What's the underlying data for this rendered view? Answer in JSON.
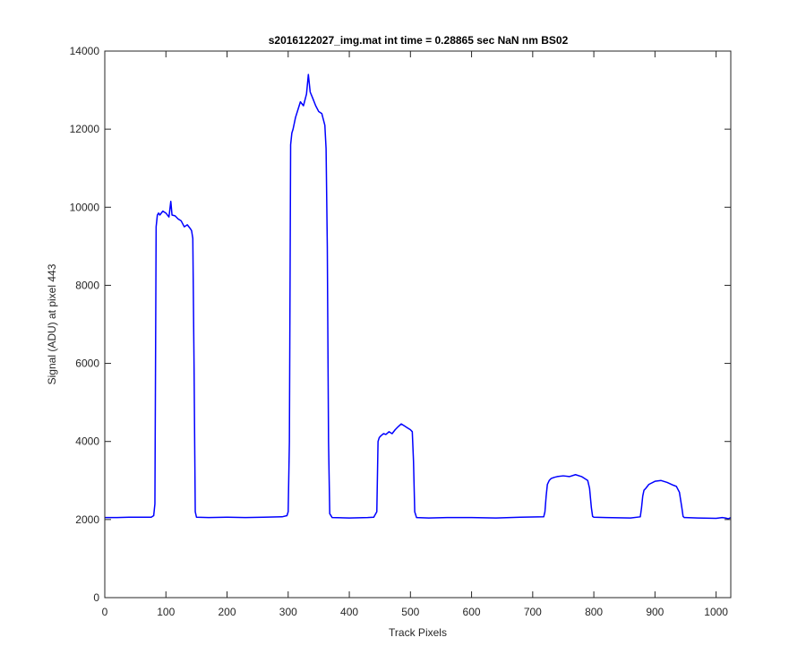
{
  "chart_data": {
    "type": "line",
    "title": "s2016122027_img.mat int time = 0.28865 sec  NaN nm BS02",
    "xlabel": "Track Pixels",
    "ylabel": "Signal (ADU) at pixel 443",
    "xlim": [
      0,
      1024
    ],
    "ylim": [
      0,
      14000
    ],
    "xticks": [
      0,
      100,
      200,
      300,
      400,
      500,
      600,
      700,
      800,
      900,
      1000
    ],
    "yticks": [
      0,
      2000,
      4000,
      6000,
      8000,
      10000,
      12000,
      14000
    ],
    "grid": false,
    "box": true,
    "color": "#0000ff",
    "series": [
      {
        "x": [
          0,
          20,
          40,
          60,
          76,
          80,
          82,
          84,
          86,
          88,
          90,
          95,
          100,
          105,
          108,
          110,
          115,
          120,
          125,
          130,
          135,
          140,
          142,
          144,
          146,
          148,
          150,
          170,
          200,
          230,
          260,
          290,
          298,
          300,
          302,
          304,
          306,
          308,
          312,
          316,
          320,
          325,
          330,
          333,
          336,
          340,
          345,
          350,
          355,
          360,
          362,
          364,
          366,
          368,
          372,
          400,
          430,
          440,
          445,
          447,
          449,
          452,
          456,
          460,
          465,
          470,
          475,
          480,
          485,
          490,
          495,
          500,
          503,
          505,
          507,
          510,
          530,
          560,
          600,
          640,
          680,
          718,
          720,
          722,
          724,
          727,
          730,
          735,
          740,
          750,
          760,
          770,
          780,
          790,
          793,
          796,
          798,
          800,
          820,
          860,
          876,
          878,
          880,
          882,
          885,
          890,
          900,
          910,
          920,
          930,
          935,
          940,
          944,
          946,
          948,
          950,
          970,
          1000,
          1010,
          1015,
          1020,
          1024
        ],
        "y": [
          2050,
          2050,
          2060,
          2060,
          2060,
          2100,
          2400,
          9500,
          9800,
          9850,
          9800,
          9900,
          9850,
          9750,
          10150,
          9800,
          9780,
          9700,
          9650,
          9500,
          9550,
          9450,
          9400,
          9200,
          6000,
          2200,
          2060,
          2050,
          2060,
          2050,
          2060,
          2070,
          2100,
          2200,
          4000,
          11600,
          11900,
          12000,
          12300,
          12500,
          12700,
          12600,
          12900,
          13400,
          12950,
          12800,
          12600,
          12450,
          12400,
          12100,
          11500,
          9000,
          4000,
          2150,
          2050,
          2040,
          2050,
          2060,
          2200,
          4000,
          4100,
          4150,
          4200,
          4180,
          4250,
          4200,
          4300,
          4380,
          4450,
          4400,
          4350,
          4300,
          4250,
          3500,
          2200,
          2050,
          2040,
          2050,
          2050,
          2040,
          2060,
          2070,
          2200,
          2600,
          2900,
          3000,
          3050,
          3080,
          3100,
          3120,
          3100,
          3150,
          3100,
          3000,
          2800,
          2300,
          2080,
          2060,
          2050,
          2040,
          2070,
          2300,
          2600,
          2750,
          2800,
          2900,
          2980,
          3000,
          2950,
          2880,
          2850,
          2700,
          2300,
          2080,
          2050,
          2050,
          2040,
          2030,
          2050,
          2040,
          2020,
          2050
        ]
      }
    ]
  }
}
